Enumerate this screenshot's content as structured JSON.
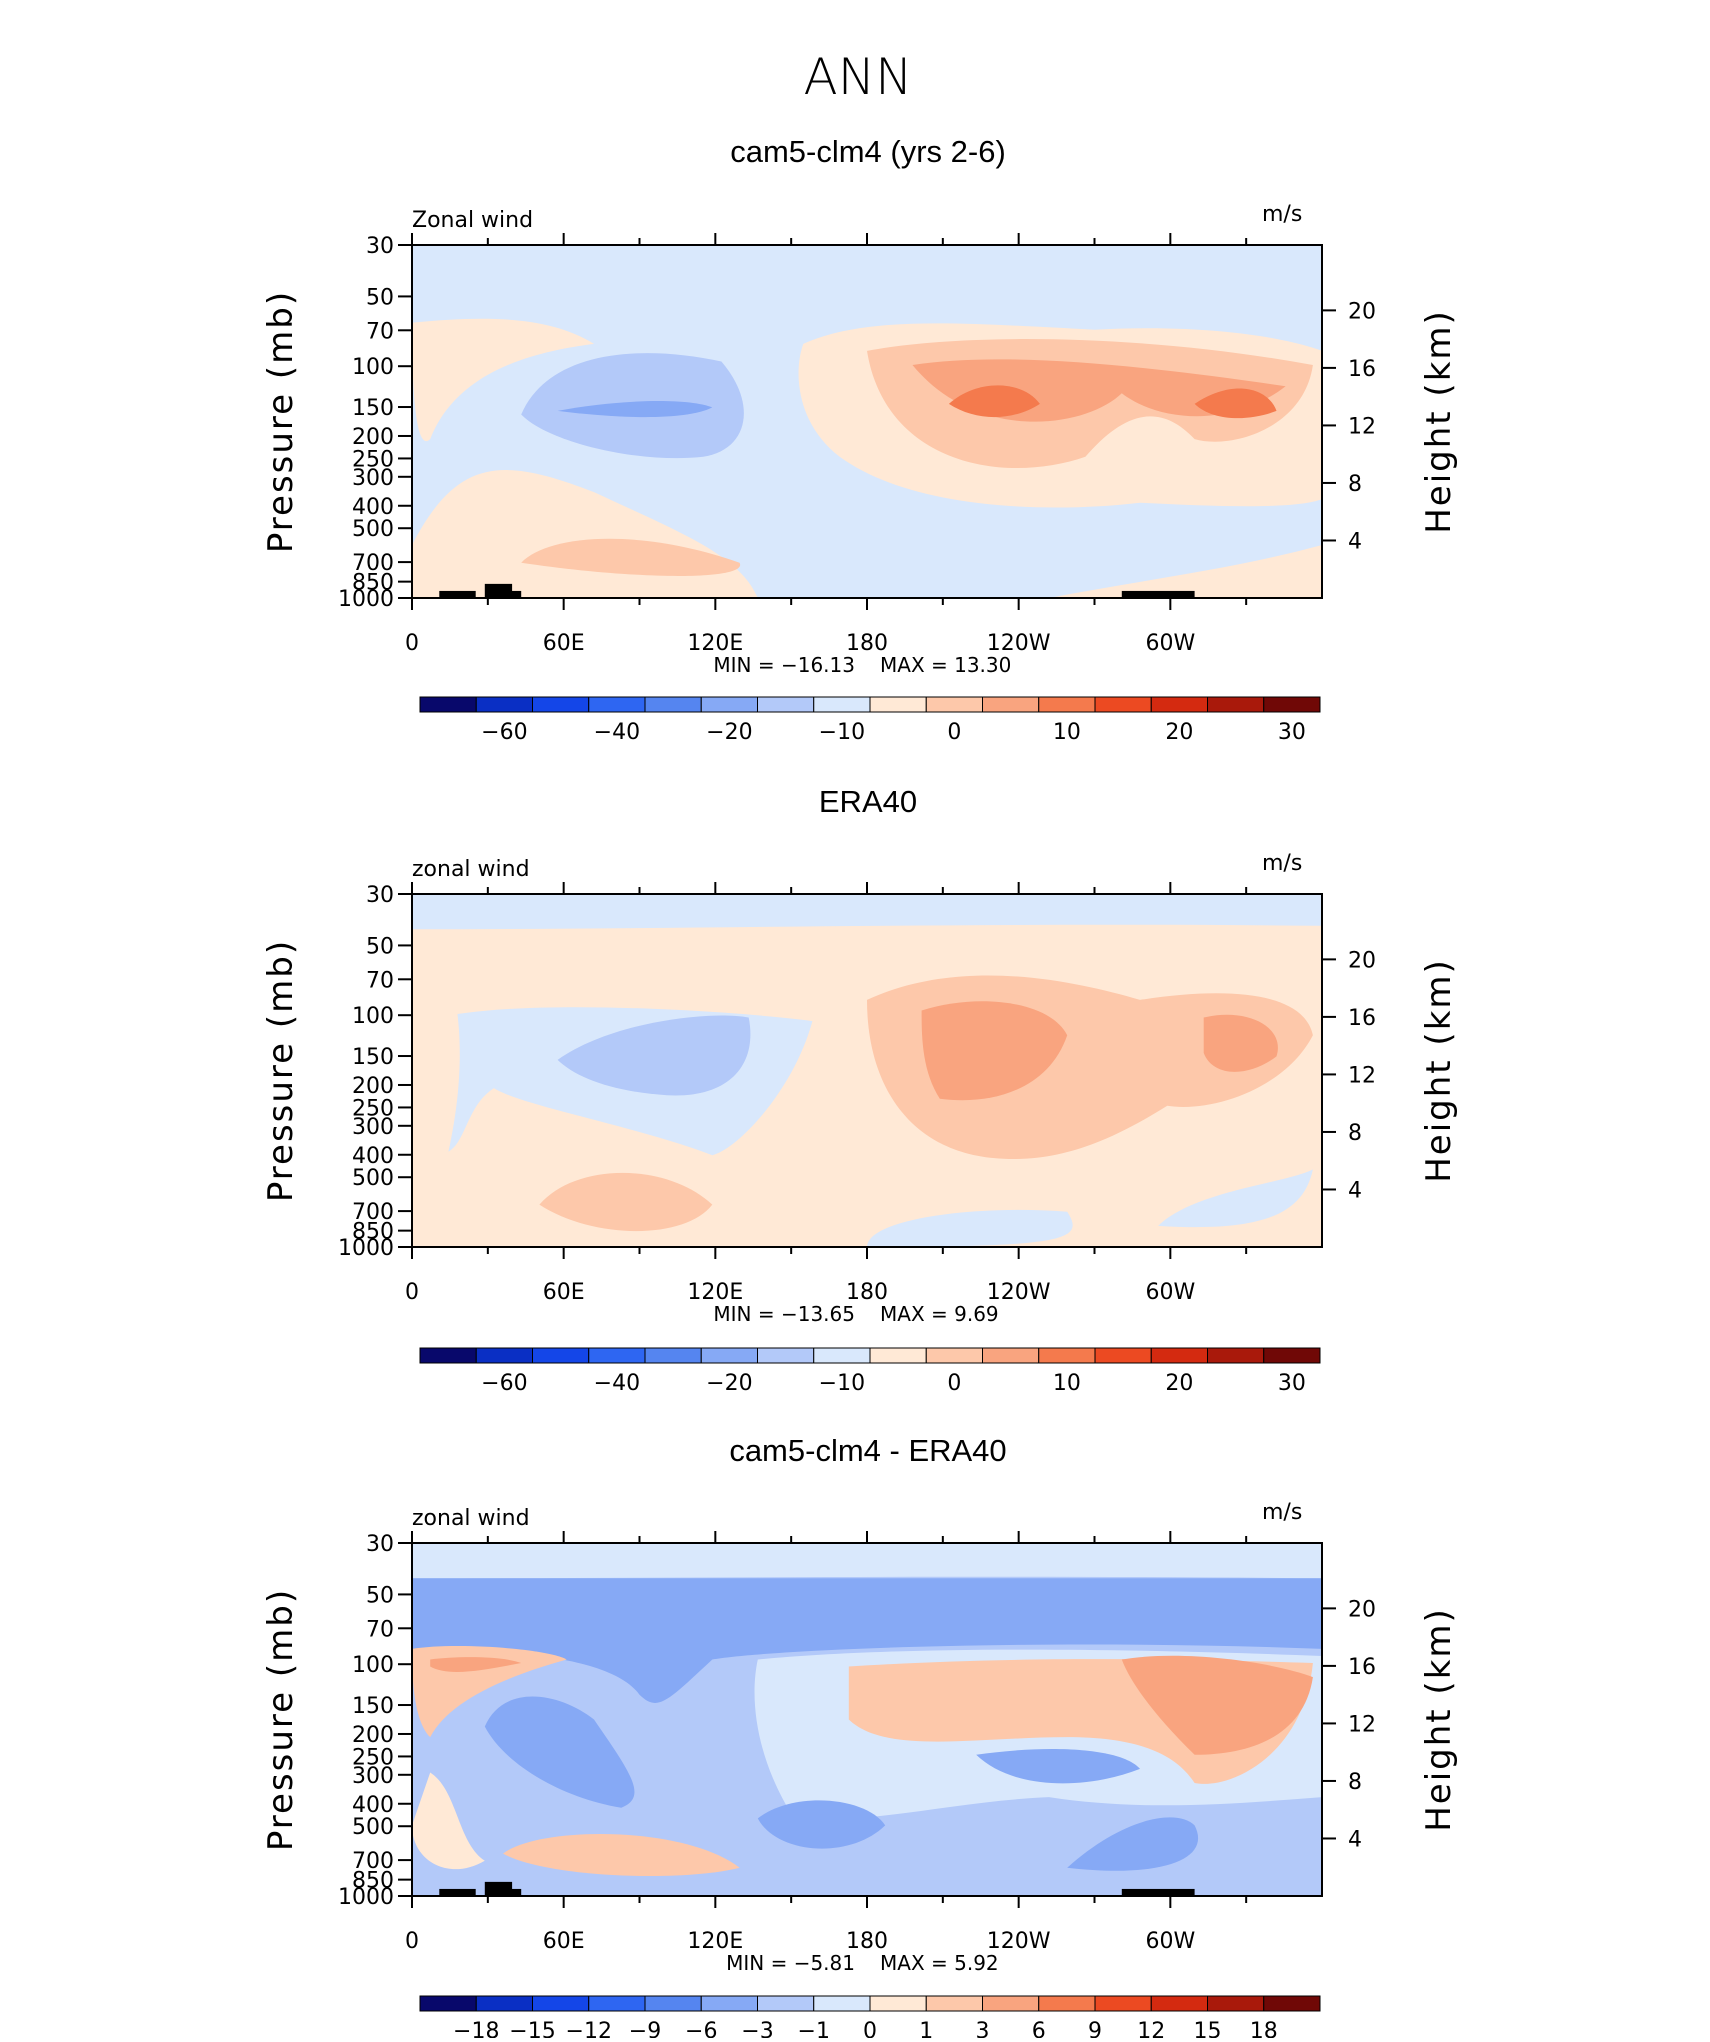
{
  "figure_title": "ANN",
  "colors": {
    "full_scale": [
      "#08086b",
      "#0a2fc4",
      "#1446e8",
      "#2e66f2",
      "#5585f0",
      "#86a9f5",
      "#b3c9f9",
      "#d9e8fc",
      "#ffe9d6",
      "#fdc8aa",
      "#f9a47f",
      "#f47a4d",
      "#ec4a22",
      "#d42a10",
      "#a9190b",
      "#700806"
    ],
    "diff_scale": [
      "#08086b",
      "#0a2fc4",
      "#1446e8",
      "#2e66f2",
      "#5585f0",
      "#86a9f5",
      "#b3c9f9",
      "#d9e8fc",
      "#ffe9d6",
      "#fdc8aa",
      "#f9a47f",
      "#f47a4d",
      "#ec4a22",
      "#d42a10",
      "#a9190b",
      "#700806"
    ]
  },
  "chart_data": [
    {
      "type": "heatmap",
      "title": "cam5-clm4 (yrs 2-6)",
      "left_label": "Zonal wind",
      "units": "m/s",
      "ylabel": "Pressure (mb)",
      "ylabel_right": "Height (km)",
      "x_ticks": [
        "0",
        "60E",
        "120E",
        "180",
        "120W",
        "60W"
      ],
      "y_ticks": [
        "30",
        "50",
        "70",
        "100",
        "150",
        "200",
        "250",
        "300",
        "400",
        "500",
        "700",
        "850",
        "1000"
      ],
      "y_ticks_right": [
        "20",
        "16",
        "12",
        "8",
        "4"
      ],
      "min_label": "MIN  =  −16.13",
      "max_label": "MAX  =    13.30",
      "colorbar_labels": [
        "−60",
        "−40",
        "−20",
        "−10",
        "0",
        "10",
        "20",
        "30"
      ],
      "fields": [
        {
          "lon": 125,
          "p": 150,
          "value": -12
        },
        {
          "lon": 212,
          "p": 150,
          "value": 12
        },
        {
          "lon": 315,
          "p": 150,
          "value": 12
        },
        {
          "lon": 80,
          "p": 700,
          "value": 4
        }
      ]
    },
    {
      "type": "heatmap",
      "title": "ERA40",
      "left_label": "zonal wind",
      "units": "m/s",
      "ylabel": "Pressure (mb)",
      "ylabel_right": "Height (km)",
      "x_ticks": [
        "0",
        "60E",
        "120E",
        "180",
        "120W",
        "60W"
      ],
      "y_ticks": [
        "30",
        "50",
        "70",
        "100",
        "150",
        "200",
        "250",
        "300",
        "400",
        "500",
        "700",
        "850",
        "1000"
      ],
      "y_ticks_right": [
        "20",
        "16",
        "12",
        "8",
        "4"
      ],
      "min_label": "MIN  =  −13.65",
      "max_label": "MAX  =     9.69",
      "colorbar_labels": [
        "−60",
        "−40",
        "−20",
        "−10",
        "0",
        "10",
        "20",
        "30"
      ],
      "fields": [
        {
          "lon": 125,
          "p": 150,
          "value": -9
        },
        {
          "lon": 215,
          "p": 150,
          "value": 9
        },
        {
          "lon": 330,
          "p": 150,
          "value": 8
        }
      ]
    },
    {
      "type": "heatmap",
      "title": "cam5-clm4 - ERA40",
      "left_label": "zonal wind",
      "units": "m/s",
      "ylabel": "Pressure (mb)",
      "ylabel_right": "Height (km)",
      "x_ticks": [
        "0",
        "60E",
        "120E",
        "180",
        "120W",
        "60W"
      ],
      "y_ticks": [
        "30",
        "50",
        "70",
        "100",
        "150",
        "200",
        "250",
        "300",
        "400",
        "500",
        "700",
        "850",
        "1000"
      ],
      "y_ticks_right": [
        "20",
        "16",
        "12",
        "8",
        "4"
      ],
      "min_label": "MIN  =    −5.81",
      "max_label": "MAX  =    5.92",
      "colorbar_labels": [
        "−18",
        "−15",
        "−12",
        "−9",
        "−6",
        "−3",
        "−1",
        "0",
        "1",
        "3",
        "6",
        "9",
        "12",
        "15",
        "18"
      ],
      "fields": [
        {
          "lon": 180,
          "p": 60,
          "value": -5
        },
        {
          "lon": 320,
          "p": 170,
          "value": 4
        },
        {
          "lon": 45,
          "p": 100,
          "value": 4
        },
        {
          "lon": 70,
          "p": 700,
          "value": 3
        }
      ]
    }
  ]
}
